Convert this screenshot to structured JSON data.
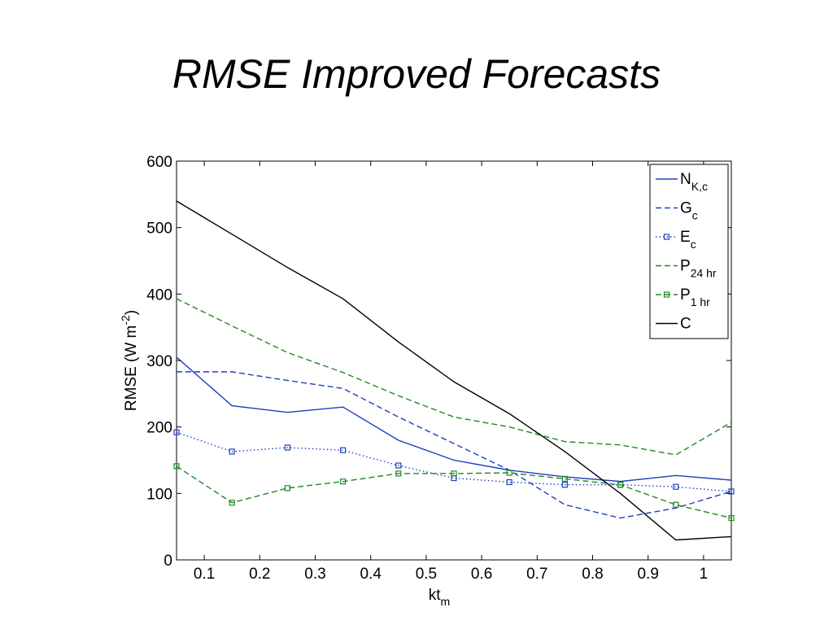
{
  "slide": {
    "title": "RMSE Improved Forecasts"
  },
  "colors": {
    "blue": "#1f3fbf",
    "green": "#1f8a1f",
    "black": "#000000"
  },
  "chart_data": {
    "type": "line",
    "xlabel": "kt",
    "xlabel_sub": "m",
    "ylabel": "RMSE (W m",
    "ylabel_sup": "-2",
    "ylabel_end": ")",
    "xlim": [
      0.05,
      1.05
    ],
    "ylim": [
      0,
      600
    ],
    "xticks": [
      0.1,
      0.2,
      0.3,
      0.4,
      0.5,
      0.6,
      0.7,
      0.8,
      0.9,
      1
    ],
    "xtick_labels": [
      "0.1",
      "0.2",
      "0.3",
      "0.4",
      "0.5",
      "0.6",
      "0.7",
      "0.8",
      "0.9",
      "1"
    ],
    "yticks": [
      0,
      100,
      200,
      300,
      400,
      500,
      600
    ],
    "ytick_labels": [
      "0",
      "100",
      "200",
      "300",
      "400",
      "500",
      "600"
    ],
    "grid": false,
    "legend_position": "top-right",
    "x": [
      0.05,
      0.15,
      0.25,
      0.35,
      0.45,
      0.55,
      0.65,
      0.75,
      0.85,
      0.95,
      1.05
    ],
    "series": [
      {
        "name": "N",
        "name_sub": "K,c",
        "color": "blue",
        "style": "solid",
        "marker": "none",
        "values": [
          305,
          232,
          222,
          230,
          180,
          150,
          135,
          125,
          118,
          127,
          120
        ]
      },
      {
        "name": "G",
        "name_sub": "c",
        "color": "blue",
        "style": "dashed",
        "marker": "none",
        "values": [
          283,
          283,
          270,
          258,
          215,
          175,
          135,
          83,
          63,
          78,
          103
        ]
      },
      {
        "name": "E",
        "name_sub": "c",
        "color": "blue",
        "style": "dotted",
        "marker": "square",
        "values": [
          192,
          163,
          169,
          165,
          142,
          123,
          117,
          113,
          113,
          110,
          103
        ]
      },
      {
        "name": "P",
        "name_sub": "24 hr",
        "color": "green",
        "style": "dashed",
        "marker": "none",
        "values": [
          393,
          352,
          312,
          282,
          247,
          215,
          200,
          178,
          173,
          158,
          207
        ]
      },
      {
        "name": "P",
        "name_sub": "1 hr",
        "color": "green",
        "style": "dashed",
        "marker": "square",
        "values": [
          141,
          86,
          108,
          118,
          130,
          130,
          131,
          122,
          113,
          83,
          63
        ]
      },
      {
        "name": "C",
        "name_sub": "",
        "color": "black",
        "style": "solid",
        "marker": "none",
        "values": [
          540,
          490,
          440,
          393,
          328,
          268,
          220,
          163,
          100,
          30,
          35
        ]
      }
    ]
  }
}
